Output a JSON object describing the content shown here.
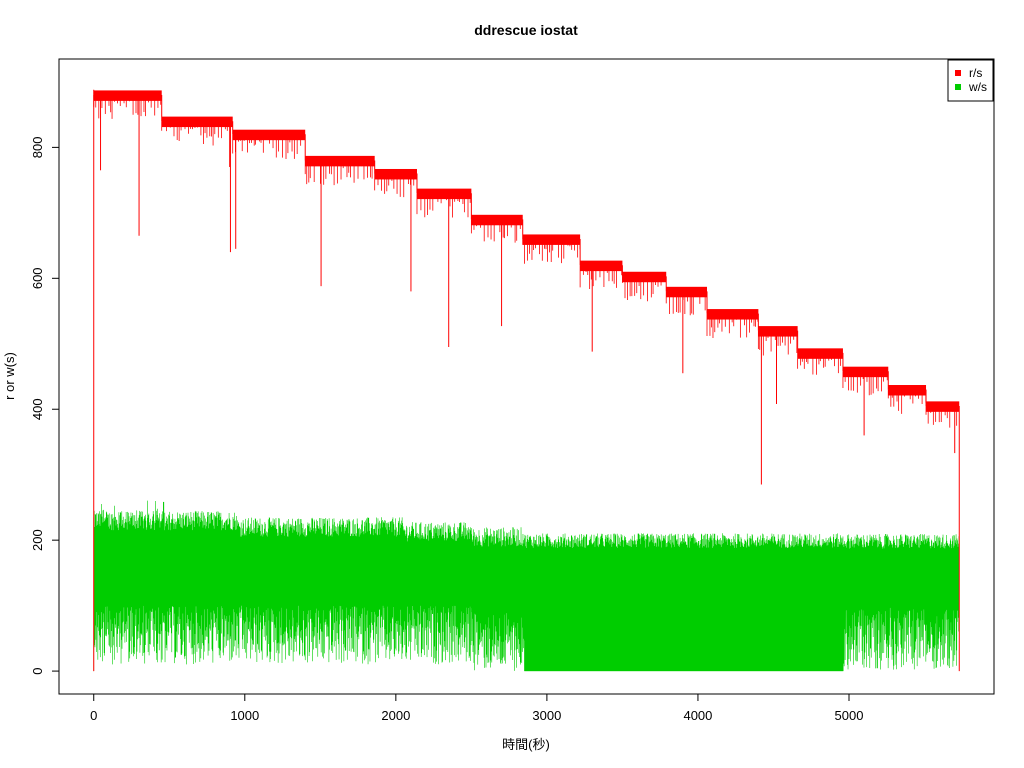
{
  "chart_data": {
    "type": "line",
    "title": "ddrescue iostat",
    "xlabel": "時間(秒)",
    "ylabel": "r or w(s)",
    "xlim": [
      -230,
      5960
    ],
    "ylim": [
      -35,
      935
    ],
    "x_ticks": [
      0,
      1000,
      2000,
      3000,
      4000,
      5000
    ],
    "y_ticks": [
      0,
      200,
      400,
      600,
      800
    ],
    "x_tick_labels": [
      "0",
      "1000",
      "2000",
      "3000",
      "4000",
      "5000"
    ],
    "y_tick_labels": [
      "0",
      "200",
      "400",
      "600",
      "800"
    ],
    "legend_position": "top-right",
    "series": [
      {
        "name": "r/s",
        "color": "#ff0000",
        "step_segments": [
          {
            "x_start": 0,
            "x_end": 450,
            "value": 880
          },
          {
            "x_start": 450,
            "x_end": 920,
            "value": 840
          },
          {
            "x_start": 920,
            "x_end": 1400,
            "value": 820
          },
          {
            "x_start": 1400,
            "x_end": 1860,
            "value": 780
          },
          {
            "x_start": 1860,
            "x_end": 2140,
            "value": 760
          },
          {
            "x_start": 2140,
            "x_end": 2500,
            "value": 730
          },
          {
            "x_start": 2500,
            "x_end": 2840,
            "value": 690
          },
          {
            "x_start": 2840,
            "x_end": 3220,
            "value": 660
          },
          {
            "x_start": 3220,
            "x_end": 3500,
            "value": 620
          },
          {
            "x_start": 3500,
            "x_end": 3790,
            "value": 603
          },
          {
            "x_start": 3790,
            "x_end": 4060,
            "value": 580
          },
          {
            "x_start": 4060,
            "x_end": 4400,
            "value": 546
          },
          {
            "x_start": 4400,
            "x_end": 4660,
            "value": 520
          },
          {
            "x_start": 4660,
            "x_end": 4960,
            "value": 486
          },
          {
            "x_start": 4960,
            "x_end": 5260,
            "value": 458
          },
          {
            "x_start": 5260,
            "x_end": 5510,
            "value": 430
          },
          {
            "x_start": 5510,
            "x_end": 5730,
            "value": 405
          }
        ],
        "dips": [
          {
            "x": 45,
            "value": 765
          },
          {
            "x": 300,
            "value": 665
          },
          {
            "x": 900,
            "value": 770
          },
          {
            "x": 905,
            "value": 640
          },
          {
            "x": 940,
            "value": 645
          },
          {
            "x": 1505,
            "value": 588
          },
          {
            "x": 2100,
            "value": 580
          },
          {
            "x": 2350,
            "value": 495
          },
          {
            "x": 2700,
            "value": 527
          },
          {
            "x": 3300,
            "value": 488
          },
          {
            "x": 3900,
            "value": 455
          },
          {
            "x": 4420,
            "value": 285
          },
          {
            "x": 4520,
            "value": 408
          },
          {
            "x": 5100,
            "value": 360
          },
          {
            "x": 5700,
            "value": 333
          }
        ]
      },
      {
        "name": "w/s",
        "color": "#00cd00",
        "band_segments": [
          {
            "x_start": 0,
            "x_end": 950,
            "low": 100,
            "high": 215
          },
          {
            "x_start": 950,
            "x_end": 2050,
            "value_low": 100,
            "high": 205
          },
          {
            "x_start": 2050,
            "x_end": 2500,
            "low": 100,
            "high": 198
          },
          {
            "x_start": 2500,
            "x_end": 2850,
            "low": 90,
            "high": 190
          },
          {
            "x_start": 2850,
            "x_end": 4960,
            "low": 0,
            "high": 188
          },
          {
            "x_start": 4960,
            "x_end": 5730,
            "low": 97,
            "high": 187
          }
        ],
        "peak_max": 262
      }
    ]
  }
}
